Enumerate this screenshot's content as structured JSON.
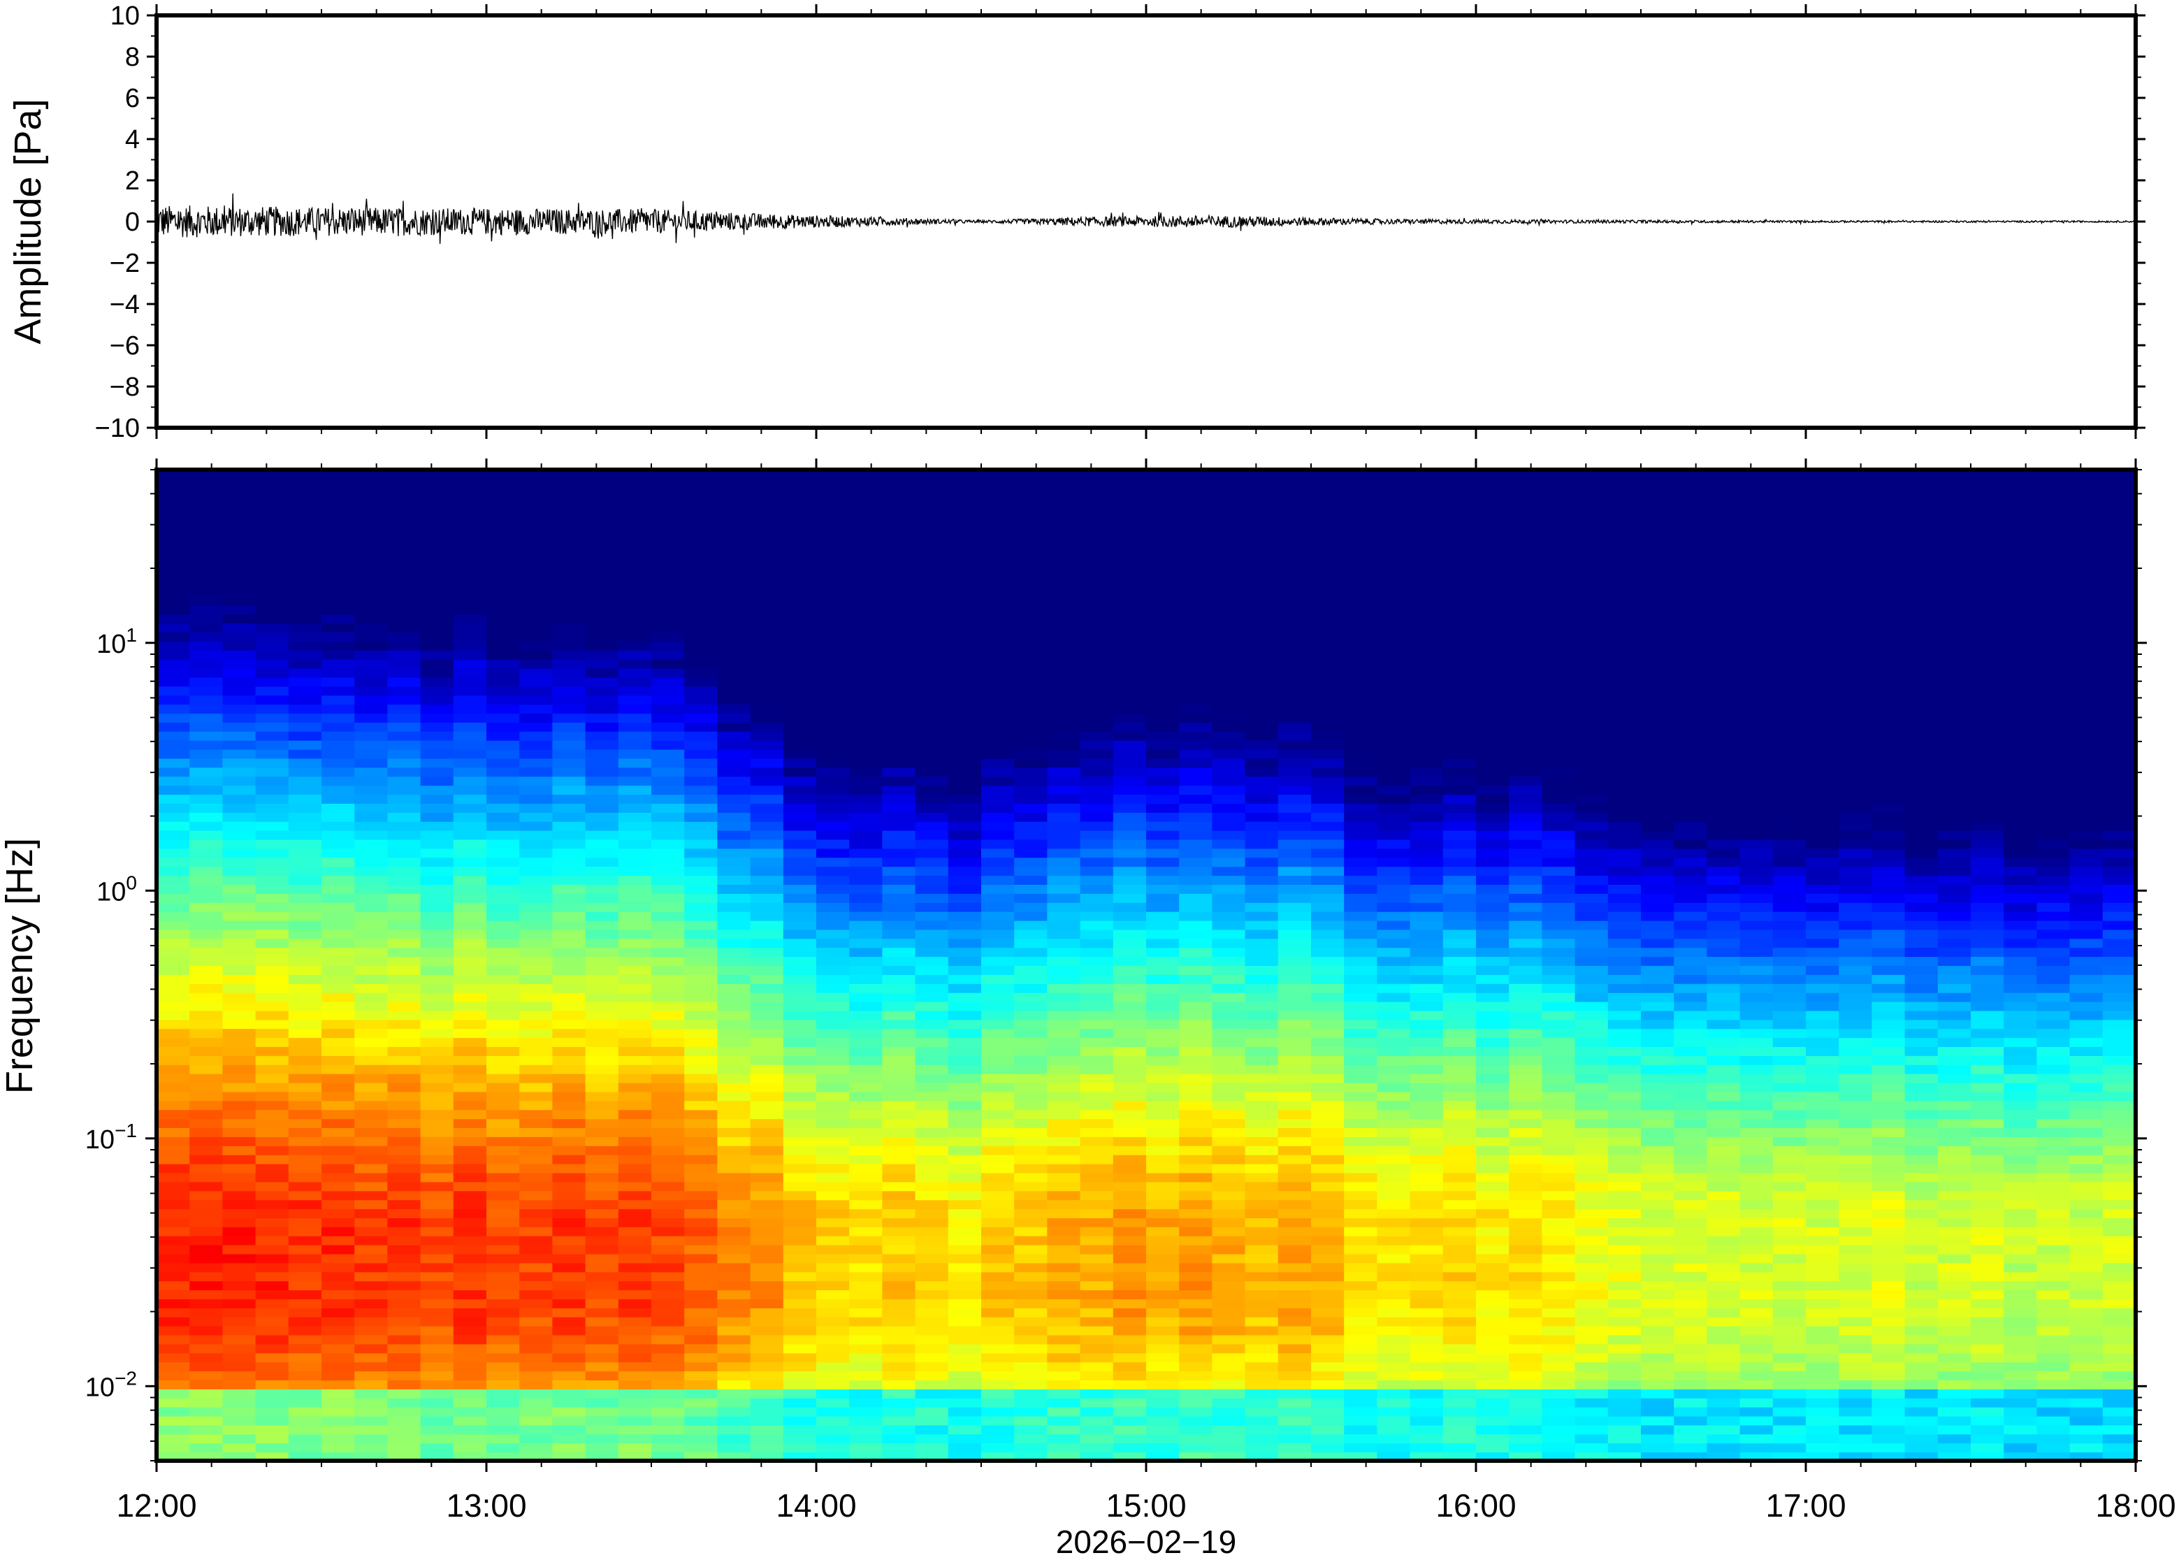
{
  "chart_data": [
    {
      "type": "line",
      "ylabel": "Amplitude [Pa]",
      "ylim": [
        -10,
        10
      ],
      "yticks": [
        -10,
        -8,
        -6,
        -4,
        -2,
        0,
        2,
        4,
        6,
        8,
        10
      ],
      "ytick_labels": [
        "−10",
        "−8",
        "−6",
        "−4",
        "−2",
        "0",
        "2",
        "4",
        "6",
        "8",
        "10"
      ],
      "xlim": [
        "2026-02-19 12:00",
        "2026-02-19 18:00"
      ],
      "series": [
        {
          "x_hours": [
            12.0,
            12.5,
            13.0,
            13.5,
            13.9,
            14.5,
            14.8,
            15.2,
            15.5,
            15.75,
            16.3,
            17.0,
            18.0
          ],
          "envelope_pa": [
            0.8,
            0.7,
            0.65,
            0.6,
            0.35,
            0.06,
            0.22,
            0.3,
            0.2,
            0.12,
            0.08,
            0.05,
            0.04
          ],
          "color": "#000000"
        }
      ],
      "grid": false
    },
    {
      "type": "heatmap",
      "ylabel": "Frequency [Hz]",
      "yscale": "log",
      "ylim": [
        0.005,
        50
      ],
      "ytick_labels": [
        {
          "base": "10",
          "exp": "−2"
        },
        {
          "base": "10",
          "exp": "−1"
        },
        {
          "base": "10",
          "exp": "0"
        },
        {
          "base": "10",
          "exp": "1"
        }
      ],
      "xlim": [
        "2026-02-19 12:00",
        "2026-02-19 18:00"
      ],
      "colormap": "jet",
      "time_bins": 60,
      "energy_by_hour": {
        "x_hours": [
          12.0,
          12.5,
          13.0,
          13.5,
          13.65,
          14.0,
          14.5,
          14.8,
          15.2,
          15.5,
          15.7,
          16.2,
          16.5,
          17.0,
          17.5,
          18.0
        ],
        "level": [
          1.0,
          0.95,
          0.95,
          0.92,
          0.85,
          0.62,
          0.55,
          0.7,
          0.72,
          0.66,
          0.55,
          0.55,
          0.42,
          0.4,
          0.38,
          0.36
        ]
      },
      "grid": false
    }
  ],
  "shared_x": {
    "tick_labels": [
      "12:00",
      "13:00",
      "14:00",
      "15:00",
      "16:00",
      "17:00",
      "18:00"
    ],
    "date_label": "2026−02−19"
  },
  "colors": {
    "trace": "#000000",
    "frame": "#000000",
    "jet_low": "#00007f",
    "jet_high": "#ff6a2a"
  }
}
